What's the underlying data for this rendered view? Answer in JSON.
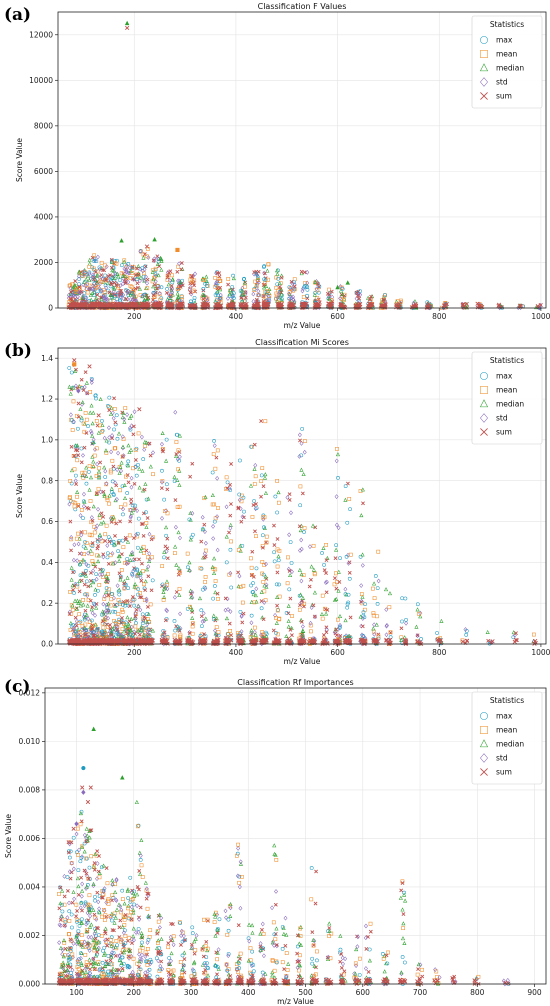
{
  "colors": {
    "max": "#1f9bc2",
    "mean": "#f08c2a",
    "median": "#2ca02c",
    "std": "#8a6bbd",
    "sum": "#c0504d"
  },
  "legend": {
    "title": "Statistics",
    "entries": [
      {
        "key": "max",
        "label": "max",
        "marker": "circle"
      },
      {
        "key": "mean",
        "label": "mean",
        "marker": "square"
      },
      {
        "key": "median",
        "label": "median",
        "marker": "triangle"
      },
      {
        "key": "std",
        "label": "std",
        "marker": "diamond"
      },
      {
        "key": "sum",
        "label": "sum",
        "marker": "x"
      }
    ],
    "placement": "top-right"
  },
  "chart_data": [
    {
      "panel_label": "(a)",
      "type": "scatter",
      "title": "Classification F Values",
      "xlabel": "m/z Value",
      "ylabel": "Score Value",
      "xlim": [
        50,
        1010
      ],
      "ylim": [
        0,
        13000
      ],
      "xticks": [
        "200",
        "400",
        "600",
        "800",
        "1000"
      ],
      "yticks": [
        "0",
        "2000",
        "4000",
        "6000",
        "8000",
        "10000",
        "12000"
      ],
      "xtick_values": [
        200,
        400,
        600,
        800,
        1000
      ],
      "ytick_values": [
        0,
        2000,
        4000,
        6000,
        8000,
        10000,
        12000
      ],
      "grid": true,
      "highlights": [
        {
          "x": 186,
          "y": 12500,
          "series": "median"
        },
        {
          "x": 186,
          "y": 12300,
          "series": "sum"
        },
        {
          "x": 240,
          "y": 3000,
          "series": "median"
        },
        {
          "x": 175,
          "y": 2950,
          "series": "median"
        },
        {
          "x": 225,
          "y": 2700,
          "series": "sum"
        },
        {
          "x": 285,
          "y": 2550,
          "series": "mean"
        },
        {
          "x": 620,
          "y": 1100,
          "series": "median"
        },
        {
          "x": 600,
          "y": 900,
          "series": "median"
        }
      ],
      "clusters": [
        {
          "x": 80,
          "ymax": 1200,
          "w": 9,
          "n": 70
        },
        {
          "x": 100,
          "ymax": 1700,
          "w": 9,
          "n": 80
        },
        {
          "x": 120,
          "ymax": 2400,
          "w": 9,
          "n": 90
        },
        {
          "x": 140,
          "ymax": 2000,
          "w": 9,
          "n": 85
        },
        {
          "x": 160,
          "ymax": 2200,
          "w": 9,
          "n": 85
        },
        {
          "x": 180,
          "ymax": 2100,
          "w": 9,
          "n": 85
        },
        {
          "x": 200,
          "ymax": 1900,
          "w": 9,
          "n": 80
        },
        {
          "x": 220,
          "ymax": 2600,
          "w": 9,
          "n": 75
        },
        {
          "x": 245,
          "ymax": 2300,
          "w": 9,
          "n": 75
        },
        {
          "x": 270,
          "ymax": 1700,
          "w": 6,
          "n": 55
        },
        {
          "x": 290,
          "ymax": 2000,
          "w": 6,
          "n": 55
        },
        {
          "x": 315,
          "ymax": 1500,
          "w": 6,
          "n": 45
        },
        {
          "x": 340,
          "ymax": 1500,
          "w": 6,
          "n": 45
        },
        {
          "x": 365,
          "ymax": 1700,
          "w": 6,
          "n": 45
        },
        {
          "x": 390,
          "ymax": 1600,
          "w": 6,
          "n": 45
        },
        {
          "x": 415,
          "ymax": 1400,
          "w": 6,
          "n": 40
        },
        {
          "x": 440,
          "ymax": 1800,
          "w": 6,
          "n": 50
        },
        {
          "x": 460,
          "ymax": 2000,
          "w": 6,
          "n": 50
        },
        {
          "x": 485,
          "ymax": 1700,
          "w": 6,
          "n": 45
        },
        {
          "x": 510,
          "ymax": 1300,
          "w": 6,
          "n": 40
        },
        {
          "x": 535,
          "ymax": 1700,
          "w": 6,
          "n": 40
        },
        {
          "x": 560,
          "ymax": 1200,
          "w": 5,
          "n": 35
        },
        {
          "x": 585,
          "ymax": 900,
          "w": 5,
          "n": 30
        },
        {
          "x": 610,
          "ymax": 1000,
          "w": 5,
          "n": 30
        },
        {
          "x": 640,
          "ymax": 800,
          "w": 5,
          "n": 28
        },
        {
          "x": 665,
          "ymax": 600,
          "w": 5,
          "n": 24
        },
        {
          "x": 690,
          "ymax": 600,
          "w": 5,
          "n": 24
        },
        {
          "x": 720,
          "ymax": 350,
          "w": 5,
          "n": 18
        },
        {
          "x": 750,
          "ymax": 300,
          "w": 5,
          "n": 16
        },
        {
          "x": 780,
          "ymax": 350,
          "w": 5,
          "n": 16
        },
        {
          "x": 810,
          "ymax": 250,
          "w": 5,
          "n": 12
        },
        {
          "x": 850,
          "ymax": 200,
          "w": 5,
          "n": 10
        },
        {
          "x": 880,
          "ymax": 200,
          "w": 5,
          "n": 10
        },
        {
          "x": 920,
          "ymax": 150,
          "w": 5,
          "n": 8
        },
        {
          "x": 960,
          "ymax": 150,
          "w": 5,
          "n": 8
        },
        {
          "x": 995,
          "ymax": 120,
          "w": 5,
          "n": 6
        }
      ]
    },
    {
      "panel_label": "(b)",
      "type": "scatter",
      "title": "Classification Mi Scores",
      "xlabel": "m/z Value",
      "ylabel": "Score Value",
      "xlim": [
        50,
        1010
      ],
      "ylim": [
        0,
        1.45
      ],
      "xticks": [
        "200",
        "400",
        "600",
        "800",
        "1000"
      ],
      "yticks": [
        "0.0",
        "0.2",
        "0.4",
        "0.6",
        "0.8",
        "1.0",
        "1.2",
        "1.4"
      ],
      "xtick_values": [
        200,
        400,
        600,
        800,
        1000
      ],
      "ytick_values": [
        0,
        0.2,
        0.4,
        0.6,
        0.8,
        1.0,
        1.2,
        1.4
      ],
      "grid": true,
      "highlights": [
        {
          "x": 82,
          "y": 1.39,
          "series": "sum"
        },
        {
          "x": 82,
          "y": 1.37,
          "series": "mean"
        },
        {
          "x": 112,
          "y": 1.36,
          "series": "sum"
        },
        {
          "x": 90,
          "y": 1.24,
          "series": "std"
        },
        {
          "x": 210,
          "y": 1.15,
          "series": "sum"
        },
        {
          "x": 130,
          "y": 1.12,
          "series": "sum"
        }
      ],
      "clusters": [
        {
          "x": 80,
          "ymax": 1.38,
          "w": 8,
          "n": 100
        },
        {
          "x": 95,
          "ymax": 1.3,
          "w": 8,
          "n": 100
        },
        {
          "x": 110,
          "ymax": 1.35,
          "w": 8,
          "n": 110
        },
        {
          "x": 125,
          "ymax": 1.25,
          "w": 8,
          "n": 110
        },
        {
          "x": 140,
          "ymax": 1.2,
          "w": 8,
          "n": 105
        },
        {
          "x": 155,
          "ymax": 1.22,
          "w": 8,
          "n": 105
        },
        {
          "x": 170,
          "ymax": 1.2,
          "w": 8,
          "n": 100
        },
        {
          "x": 185,
          "ymax": 1.18,
          "w": 8,
          "n": 95
        },
        {
          "x": 200,
          "ymax": 1.15,
          "w": 8,
          "n": 90
        },
        {
          "x": 215,
          "ymax": 1.12,
          "w": 8,
          "n": 85
        },
        {
          "x": 230,
          "ymax": 1.0,
          "w": 7,
          "n": 60
        },
        {
          "x": 260,
          "ymax": 1.1,
          "w": 6,
          "n": 55
        },
        {
          "x": 285,
          "ymax": 1.15,
          "w": 6,
          "n": 60
        },
        {
          "x": 310,
          "ymax": 0.9,
          "w": 6,
          "n": 45
        },
        {
          "x": 335,
          "ymax": 0.8,
          "w": 6,
          "n": 45
        },
        {
          "x": 360,
          "ymax": 1.0,
          "w": 6,
          "n": 50
        },
        {
          "x": 385,
          "ymax": 0.9,
          "w": 6,
          "n": 45
        },
        {
          "x": 410,
          "ymax": 0.9,
          "w": 6,
          "n": 45
        },
        {
          "x": 435,
          "ymax": 1.0,
          "w": 6,
          "n": 55
        },
        {
          "x": 455,
          "ymax": 1.15,
          "w": 6,
          "n": 60
        },
        {
          "x": 480,
          "ymax": 0.85,
          "w": 6,
          "n": 40
        },
        {
          "x": 505,
          "ymax": 0.75,
          "w": 6,
          "n": 35
        },
        {
          "x": 530,
          "ymax": 1.1,
          "w": 6,
          "n": 55
        },
        {
          "x": 550,
          "ymax": 0.6,
          "w": 6,
          "n": 30
        },
        {
          "x": 575,
          "ymax": 0.5,
          "w": 6,
          "n": 28
        },
        {
          "x": 600,
          "ymax": 0.98,
          "w": 6,
          "n": 45
        },
        {
          "x": 620,
          "ymax": 0.82,
          "w": 6,
          "n": 40
        },
        {
          "x": 650,
          "ymax": 0.8,
          "w": 6,
          "n": 35
        },
        {
          "x": 675,
          "ymax": 0.5,
          "w": 6,
          "n": 25
        },
        {
          "x": 700,
          "ymax": 0.3,
          "w": 5,
          "n": 16
        },
        {
          "x": 730,
          "ymax": 0.25,
          "w": 5,
          "n": 14
        },
        {
          "x": 760,
          "ymax": 0.25,
          "w": 5,
          "n": 14
        },
        {
          "x": 800,
          "ymax": 0.15,
          "w": 5,
          "n": 10
        },
        {
          "x": 850,
          "ymax": 0.08,
          "w": 5,
          "n": 6
        },
        {
          "x": 900,
          "ymax": 0.06,
          "w": 5,
          "n": 5
        },
        {
          "x": 950,
          "ymax": 0.06,
          "w": 5,
          "n": 5
        },
        {
          "x": 990,
          "ymax": 0.05,
          "w": 5,
          "n": 4
        }
      ]
    },
    {
      "panel_label": "(c)",
      "type": "scatter",
      "title": "Classification Rf Importances",
      "xlabel": "m/z Value",
      "ylabel": "Score Value",
      "xlim": [
        45,
        920
      ],
      "ylim": [
        0,
        0.0122
      ],
      "xticks": [
        "100",
        "200",
        "300",
        "400",
        "500",
        "600",
        "700",
        "800",
        "900"
      ],
      "yticks": [
        "0.000",
        "0.002",
        "0.004",
        "0.006",
        "0.008",
        "0.010",
        "0.012"
      ],
      "xtick_values": [
        100,
        200,
        300,
        400,
        500,
        600,
        700,
        800,
        900
      ],
      "ytick_values": [
        0,
        0.002,
        0.004,
        0.006,
        0.008,
        0.01,
        0.012
      ],
      "grid": true,
      "highlights": [
        {
          "x": 130,
          "y": 0.0105,
          "series": "median"
        },
        {
          "x": 112,
          "y": 0.0089,
          "series": "max"
        },
        {
          "x": 180,
          "y": 0.0085,
          "series": "median"
        },
        {
          "x": 110,
          "y": 0.0081,
          "series": "sum"
        },
        {
          "x": 125,
          "y": 0.0081,
          "series": "sum"
        },
        {
          "x": 112,
          "y": 0.0079,
          "series": "std"
        },
        {
          "x": 100,
          "y": 0.0066,
          "series": "std"
        },
        {
          "x": 95,
          "y": 0.0064,
          "series": "sum"
        },
        {
          "x": 120,
          "y": 0.0075,
          "series": "sum"
        }
      ],
      "clusters": [
        {
          "x": 75,
          "ymax": 0.0045,
          "w": 6,
          "n": 60
        },
        {
          "x": 90,
          "ymax": 0.0065,
          "w": 6,
          "n": 80
        },
        {
          "x": 105,
          "ymax": 0.0075,
          "w": 6,
          "n": 90
        },
        {
          "x": 120,
          "ymax": 0.0065,
          "w": 6,
          "n": 90
        },
        {
          "x": 135,
          "ymax": 0.0055,
          "w": 6,
          "n": 85
        },
        {
          "x": 150,
          "ymax": 0.005,
          "w": 6,
          "n": 80
        },
        {
          "x": 165,
          "ymax": 0.0045,
          "w": 6,
          "n": 75
        },
        {
          "x": 180,
          "ymax": 0.004,
          "w": 6,
          "n": 70
        },
        {
          "x": 195,
          "ymax": 0.0045,
          "w": 6,
          "n": 65
        },
        {
          "x": 210,
          "ymax": 0.0075,
          "w": 6,
          "n": 60
        },
        {
          "x": 225,
          "ymax": 0.0045,
          "w": 6,
          "n": 55
        },
        {
          "x": 245,
          "ymax": 0.003,
          "w": 5,
          "n": 40
        },
        {
          "x": 265,
          "ymax": 0.0025,
          "w": 5,
          "n": 36
        },
        {
          "x": 285,
          "ymax": 0.0028,
          "w": 5,
          "n": 36
        },
        {
          "x": 305,
          "ymax": 0.0025,
          "w": 5,
          "n": 32
        },
        {
          "x": 325,
          "ymax": 0.0028,
          "w": 5,
          "n": 32
        },
        {
          "x": 345,
          "ymax": 0.003,
          "w": 5,
          "n": 32
        },
        {
          "x": 365,
          "ymax": 0.0035,
          "w": 5,
          "n": 32
        },
        {
          "x": 385,
          "ymax": 0.006,
          "w": 5,
          "n": 36
        },
        {
          "x": 405,
          "ymax": 0.0025,
          "w": 5,
          "n": 28
        },
        {
          "x": 425,
          "ymax": 0.0025,
          "w": 5,
          "n": 28
        },
        {
          "x": 445,
          "ymax": 0.006,
          "w": 5,
          "n": 30
        },
        {
          "x": 465,
          "ymax": 0.003,
          "w": 5,
          "n": 26
        },
        {
          "x": 490,
          "ymax": 0.0025,
          "w": 5,
          "n": 24
        },
        {
          "x": 515,
          "ymax": 0.0058,
          "w": 5,
          "n": 28
        },
        {
          "x": 540,
          "ymax": 0.0025,
          "w": 5,
          "n": 22
        },
        {
          "x": 565,
          "ymax": 0.002,
          "w": 5,
          "n": 20
        },
        {
          "x": 590,
          "ymax": 0.002,
          "w": 5,
          "n": 20
        },
        {
          "x": 610,
          "ymax": 0.0025,
          "w": 5,
          "n": 20
        },
        {
          "x": 640,
          "ymax": 0.0015,
          "w": 5,
          "n": 16
        },
        {
          "x": 670,
          "ymax": 0.0045,
          "w": 5,
          "n": 20
        },
        {
          "x": 700,
          "ymax": 0.001,
          "w": 5,
          "n": 12
        },
        {
          "x": 730,
          "ymax": 0.0006,
          "w": 5,
          "n": 8
        },
        {
          "x": 760,
          "ymax": 0.0004,
          "w": 5,
          "n": 6
        },
        {
          "x": 800,
          "ymax": 0.0003,
          "w": 5,
          "n": 5
        },
        {
          "x": 850,
          "ymax": 0.0002,
          "w": 5,
          "n": 4
        }
      ]
    }
  ]
}
